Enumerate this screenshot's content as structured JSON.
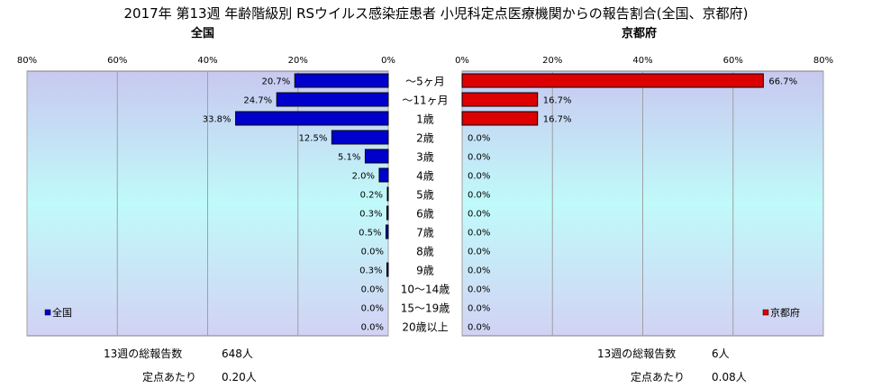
{
  "title": "2017年 第13週 年齢階級別 RSウイルス感染症患者 小児科定点医療機関からの報告割合(全国、京都府)",
  "chart_data": {
    "type": "bar",
    "categories": [
      "～5ヶ月",
      "～11ヶ月",
      "1歳",
      "2歳",
      "3歳",
      "4歳",
      "5歳",
      "6歳",
      "7歳",
      "8歳",
      "9歳",
      "10～14歳",
      "15～19歳",
      "20歳以上"
    ],
    "xlim": [
      0,
      80
    ],
    "ticks": [
      "80%",
      "60%",
      "40%",
      "20%",
      "0%"
    ],
    "ticks_right": [
      "0%",
      "20%",
      "40%",
      "60%",
      "80%"
    ],
    "series": [
      {
        "name": "全国",
        "subtitle": "全国",
        "color": "#0000cc",
        "values": [
          20.7,
          24.7,
          33.8,
          12.5,
          5.1,
          2.0,
          0.2,
          0.3,
          0.5,
          0.0,
          0.3,
          0.0,
          0.0,
          0.0
        ],
        "labels": [
          "20.7%",
          "24.7%",
          "33.8%",
          "12.5%",
          "5.1%",
          "2.0%",
          "0.2%",
          "0.3%",
          "0.5%",
          "0.0%",
          "0.3%",
          "0.0%",
          "0.0%",
          "0.0%"
        ]
      },
      {
        "name": "京都府",
        "subtitle": "京都府",
        "color": "#dd0000",
        "values": [
          66.7,
          16.7,
          16.7,
          0,
          0,
          0,
          0,
          0,
          0,
          0,
          0,
          0,
          0,
          0
        ],
        "labels": [
          "66.7%",
          "16.7%",
          "16.7%",
          "0.0%",
          "0.0%",
          "0.0%",
          "0.0%",
          "0.0%",
          "0.0%",
          "0.0%",
          "0.0%",
          "0.0%",
          "0.0%",
          "0.0%"
        ]
      }
    ],
    "grid": true,
    "legend": "bottom-left / bottom-right"
  },
  "stats": {
    "left": {
      "total_label": "13週の総報告数",
      "total_value": "648人",
      "per_label": "定点あたり",
      "per_value": "0.20人"
    },
    "right": {
      "total_label": "13週の総報告数",
      "total_value": "6人",
      "per_label": "定点あたり",
      "per_value": "0.08人"
    }
  }
}
